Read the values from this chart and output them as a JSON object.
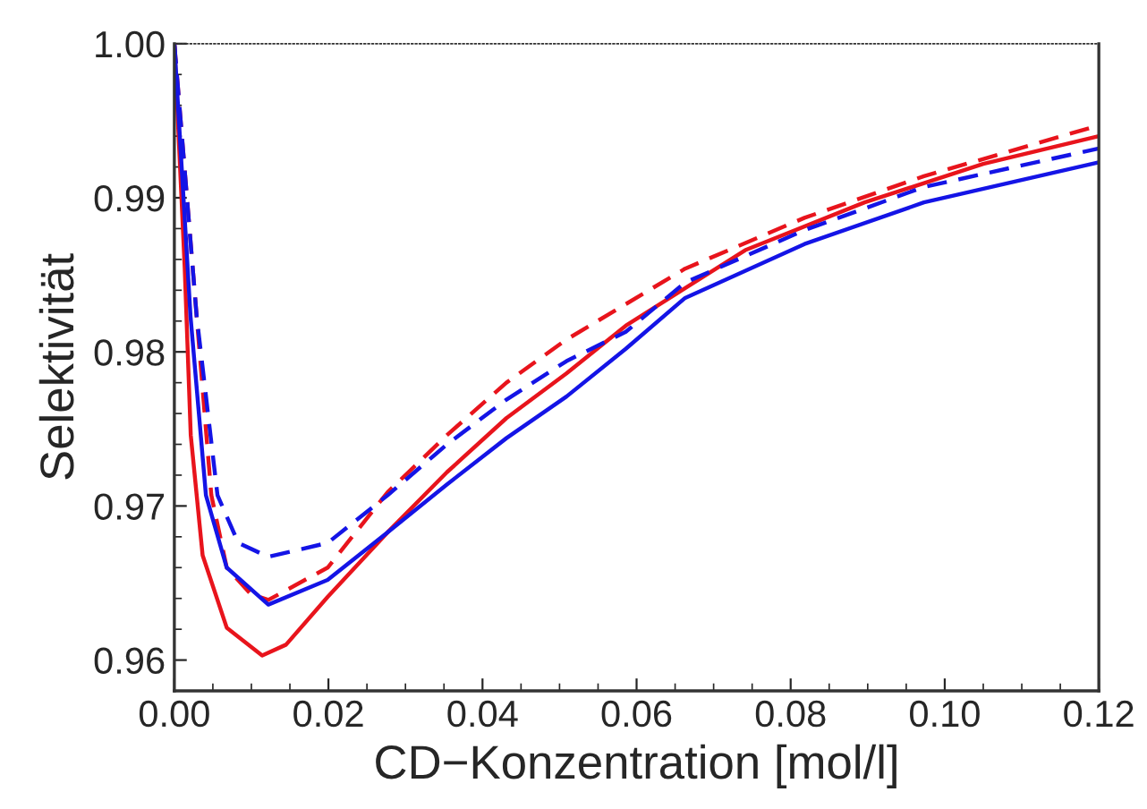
{
  "chart_data": {
    "type": "line",
    "xlabel": "CD−Konzentration [mol/l]",
    "ylabel": "Selektivität",
    "xlim": [
      0,
      0.12
    ],
    "ylim": [
      0.958,
      1.0
    ],
    "xticks": [
      {
        "value": 0,
        "label": "0.00"
      },
      {
        "value": 0.02,
        "label": "0.02"
      },
      {
        "value": 0.04,
        "label": "0.04"
      },
      {
        "value": 0.06,
        "label": "0.06"
      },
      {
        "value": 0.08,
        "label": "0.08"
      },
      {
        "value": 0.1,
        "label": "0.10"
      },
      {
        "value": 0.12,
        "label": "0.12"
      }
    ],
    "yticks": [
      {
        "value": 0.96,
        "label": "0.96"
      },
      {
        "value": 0.97,
        "label": "0.97"
      },
      {
        "value": 0.98,
        "label": "0.98"
      },
      {
        "value": 0.99,
        "label": "0.99"
      },
      {
        "value": 1.0,
        "label": "1.00"
      }
    ],
    "grid": false,
    "legend": false,
    "marker": "none",
    "series": [
      {
        "color": "#e8141c",
        "line_style": "solid",
        "x": [
          0,
          0.00135,
          0.00213,
          0.00367,
          0.0068,
          0.0114,
          0.0145,
          0.0199,
          0.0277,
          0.0354,
          0.0431,
          0.0509,
          0.0586,
          0.0741,
          0.0896,
          0.105,
          0.12
        ],
        "values": [
          1.0,
          0.9854,
          0.9746,
          0.9668,
          0.9621,
          0.9603,
          0.961,
          0.9641,
          0.9683,
          0.9722,
          0.9757,
          0.9786,
          0.9817,
          0.9866,
          0.9897,
          0.9922,
          0.994
        ]
      },
      {
        "color": "#e8141c",
        "line_style": "dashed",
        "x": [
          0,
          0.0029,
          0.0048,
          0.0068,
          0.0099,
          0.0122,
          0.0199,
          0.0277,
          0.0354,
          0.0431,
          0.0509,
          0.0663,
          0.0818,
          0.0973,
          0.12
        ],
        "values": [
          1.0,
          0.9823,
          0.9707,
          0.966,
          0.9643,
          0.9639,
          0.966,
          0.9709,
          0.9746,
          0.978,
          0.9808,
          0.9854,
          0.9887,
          0.9914,
          0.9947
        ]
      },
      {
        "color": "#1414e6",
        "line_style": "solid",
        "x": [
          0,
          0.0021,
          0.0041,
          0.0068,
          0.0122,
          0.0199,
          0.0277,
          0.0354,
          0.0431,
          0.0509,
          0.0586,
          0.0663,
          0.0818,
          0.0973,
          0.12
        ],
        "values": [
          1.0,
          0.9823,
          0.9707,
          0.966,
          0.9636,
          0.9652,
          0.9683,
          0.9714,
          0.9744,
          0.9771,
          0.9802,
          0.9835,
          0.987,
          0.9897,
          0.9923
        ]
      },
      {
        "color": "#1414e6",
        "line_style": "dashed",
        "x": [
          0,
          0.0029,
          0.0056,
          0.0083,
          0.0122,
          0.0199,
          0.0277,
          0.0354,
          0.0431,
          0.0509,
          0.0586,
          0.0663,
          0.0818,
          0.0973,
          0.12
        ],
        "values": [
          1.0,
          0.9823,
          0.9707,
          0.9676,
          0.9667,
          0.9676,
          0.9707,
          0.974,
          0.9769,
          0.9794,
          0.9813,
          0.9845,
          0.9879,
          0.9907,
          0.9932
        ]
      }
    ]
  }
}
